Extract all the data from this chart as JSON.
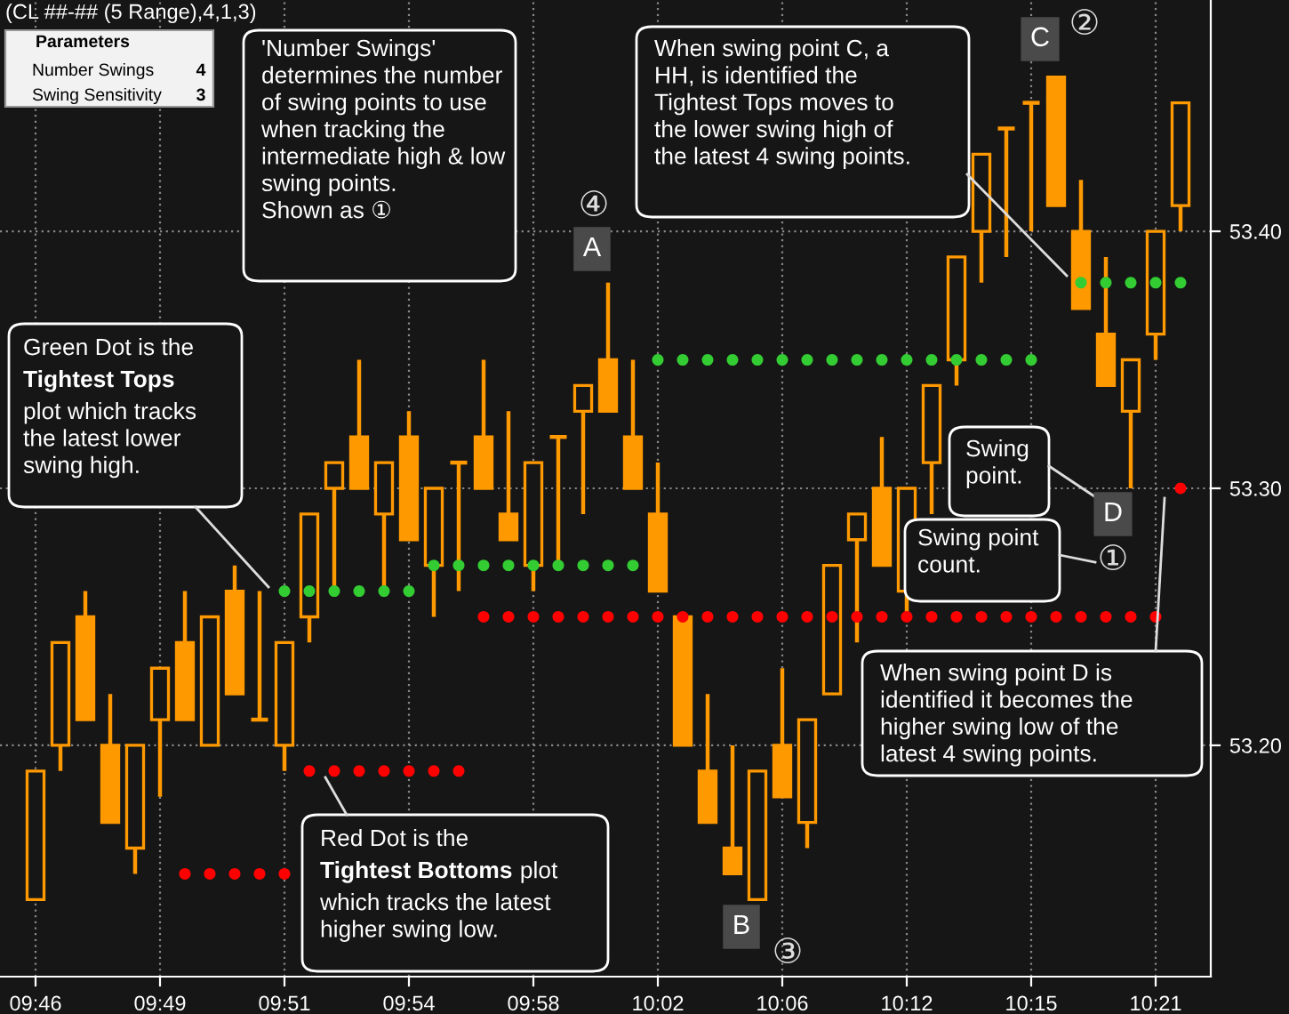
{
  "chart_data": {
    "type": "candlestick",
    "title": "(CL ##-## (5 Range),4,1,3)",
    "categories": [
      "09:46",
      null,
      null,
      null,
      null,
      "09:49",
      null,
      null,
      null,
      null,
      "09:51",
      null,
      null,
      null,
      null,
      "09:54",
      null,
      null,
      null,
      null,
      "09:58",
      null,
      null,
      null,
      null,
      "10:02",
      null,
      null,
      null,
      null,
      "10:06",
      null,
      null,
      null,
      null,
      "10:12",
      null,
      null,
      null,
      null,
      "10:15",
      null,
      null,
      null,
      null,
      "10:21",
      null
    ],
    "ohlc": [
      [
        53.14,
        53.19,
        53.14,
        53.19
      ],
      [
        53.2,
        53.24,
        53.19,
        53.24
      ],
      [
        53.25,
        53.26,
        53.21,
        53.21
      ],
      [
        53.2,
        53.22,
        53.17,
        53.17
      ],
      [
        53.16,
        53.2,
        53.15,
        53.2
      ],
      [
        53.21,
        53.23,
        53.18,
        53.23
      ],
      [
        53.24,
        53.26,
        53.21,
        53.21
      ],
      [
        53.2,
        53.25,
        53.2,
        53.25
      ],
      [
        53.26,
        53.27,
        53.22,
        53.22
      ],
      [
        53.21,
        53.26,
        53.21,
        53.21
      ],
      [
        53.2,
        53.24,
        53.19,
        53.24
      ],
      [
        53.25,
        53.29,
        53.24,
        53.29
      ],
      [
        53.3,
        53.31,
        53.26,
        53.31
      ],
      [
        53.32,
        53.35,
        53.3,
        53.3
      ],
      [
        53.29,
        53.31,
        53.26,
        53.31
      ],
      [
        53.32,
        53.33,
        53.28,
        53.28
      ],
      [
        53.27,
        53.3,
        53.25,
        53.3
      ],
      [
        53.31,
        53.31,
        53.26,
        53.31
      ],
      [
        53.32,
        53.35,
        53.3,
        53.3
      ],
      [
        53.29,
        53.33,
        53.28,
        53.28
      ],
      [
        53.27,
        53.31,
        53.26,
        53.31
      ],
      [
        53.32,
        53.32,
        53.27,
        53.32
      ],
      [
        53.33,
        53.34,
        53.29,
        53.34
      ],
      [
        53.35,
        53.38,
        53.33,
        53.33
      ],
      [
        53.32,
        53.35,
        53.3,
        53.3
      ],
      [
        53.29,
        53.31,
        53.26,
        53.26
      ],
      [
        53.25,
        53.25,
        53.2,
        53.2
      ],
      [
        53.19,
        53.22,
        53.17,
        53.17
      ],
      [
        53.16,
        53.2,
        53.15,
        53.15
      ],
      [
        53.14,
        53.19,
        53.14,
        53.19
      ],
      [
        53.2,
        53.23,
        53.18,
        53.18
      ],
      [
        53.17,
        53.21,
        53.16,
        53.21
      ],
      [
        53.22,
        53.27,
        53.22,
        53.27
      ],
      [
        53.28,
        53.29,
        53.24,
        53.29
      ],
      [
        53.3,
        53.32,
        53.27,
        53.27
      ],
      [
        53.26,
        53.3,
        53.25,
        53.3
      ],
      [
        53.31,
        53.34,
        53.29,
        53.34
      ],
      [
        53.35,
        53.39,
        53.34,
        53.39
      ],
      [
        53.4,
        53.43,
        53.38,
        53.43
      ],
      [
        53.44,
        53.44,
        53.39,
        53.44
      ],
      [
        53.45,
        53.45,
        53.4,
        53.45
      ],
      [
        53.46,
        53.46,
        53.41,
        53.41
      ],
      [
        53.4,
        53.42,
        53.37,
        53.37
      ],
      [
        53.36,
        53.39,
        53.34,
        53.34
      ],
      [
        53.33,
        53.35,
        53.3,
        53.35
      ],
      [
        53.36,
        53.4,
        53.35,
        53.4
      ],
      [
        53.41,
        53.45,
        53.4,
        53.45
      ]
    ],
    "color": "#ff9900",
    "series": [
      {
        "type": "scatter",
        "color": "#33cc33",
        "marker": "circle",
        "values": [
          null,
          null,
          null,
          null,
          null,
          null,
          null,
          null,
          null,
          null,
          53.26,
          53.26,
          53.26,
          53.26,
          53.26,
          53.26,
          53.27,
          53.27,
          53.27,
          53.27,
          53.27,
          53.27,
          53.27,
          53.27,
          53.27,
          53.35,
          53.35,
          53.35,
          53.35,
          53.35,
          53.35,
          53.35,
          53.35,
          53.35,
          53.35,
          53.35,
          53.35,
          53.35,
          53.35,
          53.35,
          53.35,
          null,
          53.38,
          53.38,
          53.38,
          53.38,
          53.38
        ]
      },
      {
        "type": "scatter",
        "color": "#ff0000",
        "marker": "circle",
        "values": [
          null,
          null,
          null,
          null,
          null,
          null,
          53.15,
          53.15,
          53.15,
          53.15,
          53.15,
          53.19,
          53.19,
          53.19,
          53.19,
          53.19,
          53.19,
          53.19,
          53.25,
          53.25,
          53.25,
          53.25,
          53.25,
          53.25,
          53.25,
          53.25,
          53.25,
          53.25,
          53.25,
          53.25,
          53.25,
          53.25,
          53.25,
          53.25,
          53.25,
          53.25,
          53.25,
          53.25,
          53.25,
          53.25,
          53.25,
          53.25,
          53.25,
          53.25,
          53.25,
          53.25,
          53.3
        ]
      }
    ],
    "ylim": [
      53.11,
      53.49
    ],
    "yticks": [
      {
        "value": 53.2,
        "label": "53.20"
      },
      {
        "value": 53.3,
        "label": "53.30"
      },
      {
        "value": 53.4,
        "label": "53.40"
      }
    ],
    "grid": true,
    "annotations": [
      "Parameters",
      "Number Swings",
      "4",
      "Swing Sensitivity",
      "3",
      "'Number Swings'\ndetermines the number\nof swing points to use\nwhen tracking the\nintermediate high & low\nswing points.\nShown as ①",
      "Green Dot is the",
      "Tightest Tops",
      "plot which tracks\nthe latest lower\nswing high.",
      "Red Dot is the",
      "Tightest Bottoms",
      "plot",
      "which tracks the latest\nhigher swing low.",
      "When swing point C, a\nHH, is identified the\nTightest Tops moves to\nthe lower swing high of\nthe latest 4 swing points.",
      "Swing\npoint.",
      "Swing point\ncount.",
      "When swing point D is\nidentified it becomes the\nhigher swing low of the\nlatest 4 swing points.",
      "A",
      "④",
      "B",
      "③",
      "C",
      "②",
      "D",
      "①"
    ]
  }
}
